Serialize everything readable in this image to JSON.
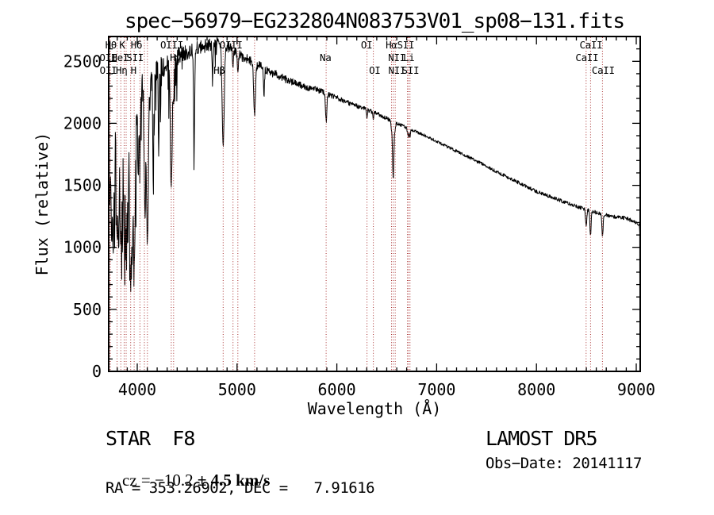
{
  "title": "spec−56979−EG232804N083753V01_sp08−131.fits",
  "footer": {
    "class_label": "STAR  F8",
    "cz_prefix": "cz = −10.2 ",
    "cz_error": "± 4.5 km/s",
    "ra_dec": "RA = 353.26902, DEC =   7.91616",
    "survey": "LAMOST DR5",
    "obs_date": "Obs−Date: 20141117"
  },
  "chart_data": {
    "type": "line",
    "title": "spec−56979−EG232804N083753V01_sp08−131.fits",
    "xlabel": "Wavelength (Å)",
    "ylabel": "Flux (relative)",
    "xlim": [
      3714,
      9040
    ],
    "ylim": [
      0,
      2700
    ],
    "xticks": [
      4000,
      5000,
      6000,
      7000,
      8000,
      9000
    ],
    "yticks": [
      0,
      500,
      1000,
      1500,
      2000,
      2500
    ],
    "x_minor_step": 100,
    "y_minor_step": 100,
    "grid": false,
    "legend": "none",
    "axis_color": "#000000",
    "spectrum_color": "#000000",
    "marker_color": "#aa3333",
    "spectral_lines": [
      3727,
      3730,
      3798,
      3836,
      3869,
      3889,
      3934,
      3969,
      4027,
      4072,
      4102,
      4341,
      4364,
      4861,
      4960,
      5008,
      5176,
      5893,
      6302,
      6366,
      6548,
      6565,
      6585,
      6708,
      6718,
      6733,
      8498,
      8542,
      8662
    ],
    "line_labels": [
      {
        "text": "Hθ",
        "wl": 3736,
        "row": 1
      },
      {
        "text": "K",
        "wl": 3849,
        "row": 1
      },
      {
        "text": "Hδ",
        "wl": 3992,
        "row": 1
      },
      {
        "text": "OIII",
        "wl": 4346,
        "row": 1
      },
      {
        "text": "OIII",
        "wl": 4940,
        "row": 1
      },
      {
        "text": "OI",
        "wl": 6298,
        "row": 1
      },
      {
        "text": "Hα",
        "wl": 6546,
        "row": 1
      },
      {
        "text": "SII",
        "wl": 6690,
        "row": 1
      },
      {
        "text": "CaII",
        "wl": 8546,
        "row": 1
      },
      {
        "text": "OII",
        "wl": 3708,
        "row": 2
      },
      {
        "text": "HeI",
        "wl": 3827,
        "row": 2
      },
      {
        "text": "SII",
        "wl": 3978,
        "row": 2
      },
      {
        "text": "Hγ",
        "wl": 4384,
        "row": 2
      },
      {
        "text": "Na",
        "wl": 5886,
        "row": 2
      },
      {
        "text": "NII",
        "wl": 6600,
        "row": 2
      },
      {
        "text": "Li",
        "wl": 6721,
        "row": 2
      },
      {
        "text": "CaII",
        "wl": 8506,
        "row": 2
      },
      {
        "text": "OII",
        "wl": 3710,
        "row": 3
      },
      {
        "text": "Hη",
        "wl": 3843,
        "row": 3
      },
      {
        "text": "H",
        "wl": 3962,
        "row": 3
      },
      {
        "text": "Hβ",
        "wl": 4821,
        "row": 3
      },
      {
        "text": "OI",
        "wl": 6379,
        "row": 3
      },
      {
        "text": "NII",
        "wl": 6603,
        "row": 3
      },
      {
        "text": "SII",
        "wl": 6738,
        "row": 3
      },
      {
        "text": "CaII",
        "wl": 8669,
        "row": 3
      }
    ],
    "continuum": [
      [
        3714,
        2020
      ],
      [
        3760,
        1990
      ],
      [
        3800,
        2010
      ],
      [
        3850,
        2070
      ],
      [
        3900,
        2130
      ],
      [
        3950,
        2180
      ],
      [
        4000,
        2230
      ],
      [
        4100,
        2330
      ],
      [
        4200,
        2420
      ],
      [
        4300,
        2480
      ],
      [
        4400,
        2540
      ],
      [
        4500,
        2580
      ],
      [
        4600,
        2615
      ],
      [
        4700,
        2630
      ],
      [
        4800,
        2640
      ],
      [
        4900,
        2620
      ],
      [
        5000,
        2565
      ],
      [
        5100,
        2520
      ],
      [
        5200,
        2470
      ],
      [
        5300,
        2430
      ],
      [
        5400,
        2390
      ],
      [
        5500,
        2350
      ],
      [
        5600,
        2320
      ],
      [
        5700,
        2290
      ],
      [
        5800,
        2270
      ],
      [
        5900,
        2240
      ],
      [
        6000,
        2205
      ],
      [
        6100,
        2170
      ],
      [
        6200,
        2140
      ],
      [
        6300,
        2110
      ],
      [
        6400,
        2080
      ],
      [
        6500,
        2040
      ],
      [
        6600,
        2000
      ],
      [
        6700,
        1965
      ],
      [
        6800,
        1930
      ],
      [
        6900,
        1895
      ],
      [
        7000,
        1855
      ],
      [
        7100,
        1815
      ],
      [
        7200,
        1775
      ],
      [
        7300,
        1735
      ],
      [
        7400,
        1695
      ],
      [
        7500,
        1655
      ],
      [
        7600,
        1610
      ],
      [
        7700,
        1570
      ],
      [
        7800,
        1530
      ],
      [
        7900,
        1490
      ],
      [
        8000,
        1450
      ],
      [
        8100,
        1420
      ],
      [
        8200,
        1390
      ],
      [
        8300,
        1360
      ],
      [
        8400,
        1330
      ],
      [
        8500,
        1305
      ],
      [
        8600,
        1280
      ],
      [
        8700,
        1260
      ],
      [
        8800,
        1245
      ],
      [
        8900,
        1235
      ],
      [
        9000,
        1195
      ],
      [
        9040,
        1180
      ]
    ],
    "absorption_features": [
      [
        3727,
        0.3,
        6
      ],
      [
        3745,
        0.5,
        5
      ],
      [
        3760,
        0.45,
        5
      ],
      [
        3773,
        0.4,
        4
      ],
      [
        3798,
        0.5,
        9
      ],
      [
        3815,
        0.45,
        5
      ],
      [
        3836,
        0.5,
        9
      ],
      [
        3852,
        0.4,
        4
      ],
      [
        3869,
        0.45,
        7
      ],
      [
        3889,
        0.5,
        8
      ],
      [
        3907,
        0.45,
        5
      ],
      [
        3934,
        0.66,
        11
      ],
      [
        3950,
        0.45,
        4
      ],
      [
        3969,
        0.62,
        11
      ],
      [
        4010,
        0.35,
        4
      ],
      [
        4027,
        0.22,
        6
      ],
      [
        4072,
        0.3,
        6
      ],
      [
        4080,
        0.4,
        4
      ],
      [
        4102,
        0.55,
        10
      ],
      [
        4160,
        0.33,
        5
      ],
      [
        4215,
        0.28,
        4
      ],
      [
        4341,
        0.42,
        9
      ],
      [
        4364,
        0.12,
        5
      ],
      [
        4570,
        0.34,
        5
      ],
      [
        4755,
        0.1,
        4
      ],
      [
        4861,
        0.32,
        10
      ],
      [
        4960,
        0.05,
        5
      ],
      [
        5008,
        0.05,
        5
      ],
      [
        5176,
        0.17,
        9
      ],
      [
        5270,
        0.09,
        5
      ],
      [
        5893,
        0.1,
        7
      ],
      [
        6302,
        0.03,
        4
      ],
      [
        6366,
        0.03,
        4
      ],
      [
        6548,
        0.03,
        4
      ],
      [
        6565,
        0.23,
        7
      ],
      [
        6585,
        0.03,
        4
      ],
      [
        6708,
        0.02,
        4
      ],
      [
        6718,
        0.035,
        4
      ],
      [
        6733,
        0.035,
        4
      ],
      [
        8498,
        0.1,
        6
      ],
      [
        8542,
        0.16,
        6
      ],
      [
        8662,
        0.14,
        6
      ]
    ],
    "noise_profile": [
      [
        3714,
        260
      ],
      [
        3800,
        240
      ],
      [
        3900,
        210
      ],
      [
        4000,
        130
      ],
      [
        4200,
        95
      ],
      [
        4400,
        75
      ],
      [
        4700,
        55
      ],
      [
        5000,
        45
      ],
      [
        5300,
        38
      ],
      [
        5600,
        28
      ],
      [
        6000,
        20
      ],
      [
        6400,
        16
      ],
      [
        6900,
        12
      ],
      [
        7400,
        13
      ],
      [
        8000,
        14
      ],
      [
        8600,
        15
      ],
      [
        9040,
        16
      ]
    ],
    "seed": 20141117
  }
}
